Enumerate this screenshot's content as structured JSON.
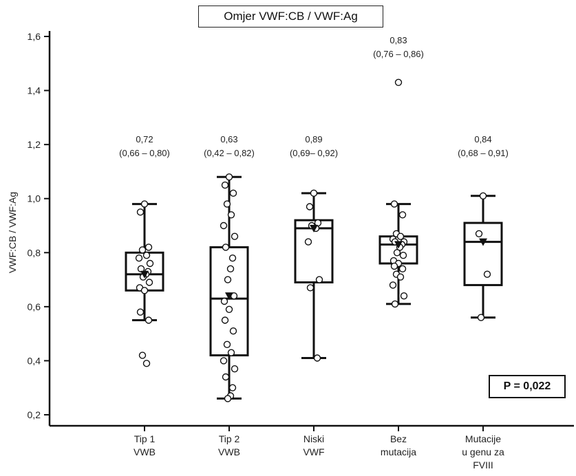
{
  "chart_data": {
    "type": "box",
    "title": "Omjer VWF:CB / VWF:Ag",
    "ylabel": "VWF:CB / VWF:Ag",
    "xlabel": "",
    "ylim": [
      0.2,
      1.6
    ],
    "yticks": [
      0.2,
      0.4,
      0.6,
      0.8,
      1.0,
      1.2,
      1.4,
      1.6
    ],
    "ytick_labels": [
      "0,2",
      "0,4",
      "0,6",
      "0,8",
      "1,0",
      "1,2",
      "1,4",
      "1,6"
    ],
    "p_value_label": "P = 0,022",
    "groups": [
      {
        "label_lines": [
          "Tip 1",
          "VWB"
        ],
        "median": 0.72,
        "q1": 0.66,
        "q3": 0.8,
        "whisker_low": 0.55,
        "whisker_high": 0.98,
        "mean": 0.72,
        "annotation_lines": [
          "0,72",
          "(0,66 – 0,80)"
        ],
        "points": [
          0.98,
          0.95,
          0.82,
          0.81,
          0.79,
          0.78,
          0.76,
          0.74,
          0.73,
          0.72,
          0.71,
          0.69,
          0.67,
          0.66,
          0.58,
          0.55,
          0.42,
          0.39
        ]
      },
      {
        "label_lines": [
          "Tip 2",
          "VWB"
        ],
        "median": 0.63,
        "q1": 0.42,
        "q3": 0.82,
        "whisker_low": 0.26,
        "whisker_high": 1.08,
        "mean": 0.64,
        "annotation_lines": [
          "0,63",
          "(0,42 – 0,82)"
        ],
        "points": [
          1.08,
          1.05,
          1.02,
          0.98,
          0.94,
          0.9,
          0.86,
          0.82,
          0.78,
          0.74,
          0.7,
          0.64,
          0.62,
          0.59,
          0.55,
          0.51,
          0.46,
          0.43,
          0.4,
          0.37,
          0.34,
          0.3,
          0.27,
          0.26
        ]
      },
      {
        "label_lines": [
          "Niski",
          "VWF"
        ],
        "median": 0.89,
        "q1": 0.69,
        "q3": 0.92,
        "whisker_low": 0.41,
        "whisker_high": 1.02,
        "mean": 0.89,
        "annotation_lines": [
          "0,89",
          "(0,69– 0,92)"
        ],
        "points": [
          1.02,
          0.97,
          0.91,
          0.9,
          0.89,
          0.84,
          0.7,
          0.67,
          0.41
        ]
      },
      {
        "label_lines": [
          "Bez",
          "mutacija"
        ],
        "median": 0.83,
        "q1": 0.76,
        "q3": 0.86,
        "whisker_low": 0.61,
        "whisker_high": 0.98,
        "mean": 0.83,
        "annotation_lines": [
          "0,83",
          "(0,76 – 0,86)"
        ],
        "points": [
          1.43,
          0.98,
          0.94,
          0.87,
          0.86,
          0.85,
          0.84,
          0.84,
          0.83,
          0.82,
          0.8,
          0.79,
          0.77,
          0.76,
          0.75,
          0.74,
          0.72,
          0.71,
          0.68,
          0.64,
          0.61
        ]
      },
      {
        "label_lines": [
          "Mutacije",
          "u genu za",
          "FVIII"
        ],
        "median": 0.84,
        "q1": 0.68,
        "q3": 0.91,
        "whisker_low": 0.56,
        "whisker_high": 1.01,
        "mean": 0.84,
        "annotation_lines": [
          "0,84",
          "(0,68 – 0,91)"
        ],
        "points": [
          1.01,
          0.87,
          0.72,
          0.56
        ]
      }
    ]
  }
}
